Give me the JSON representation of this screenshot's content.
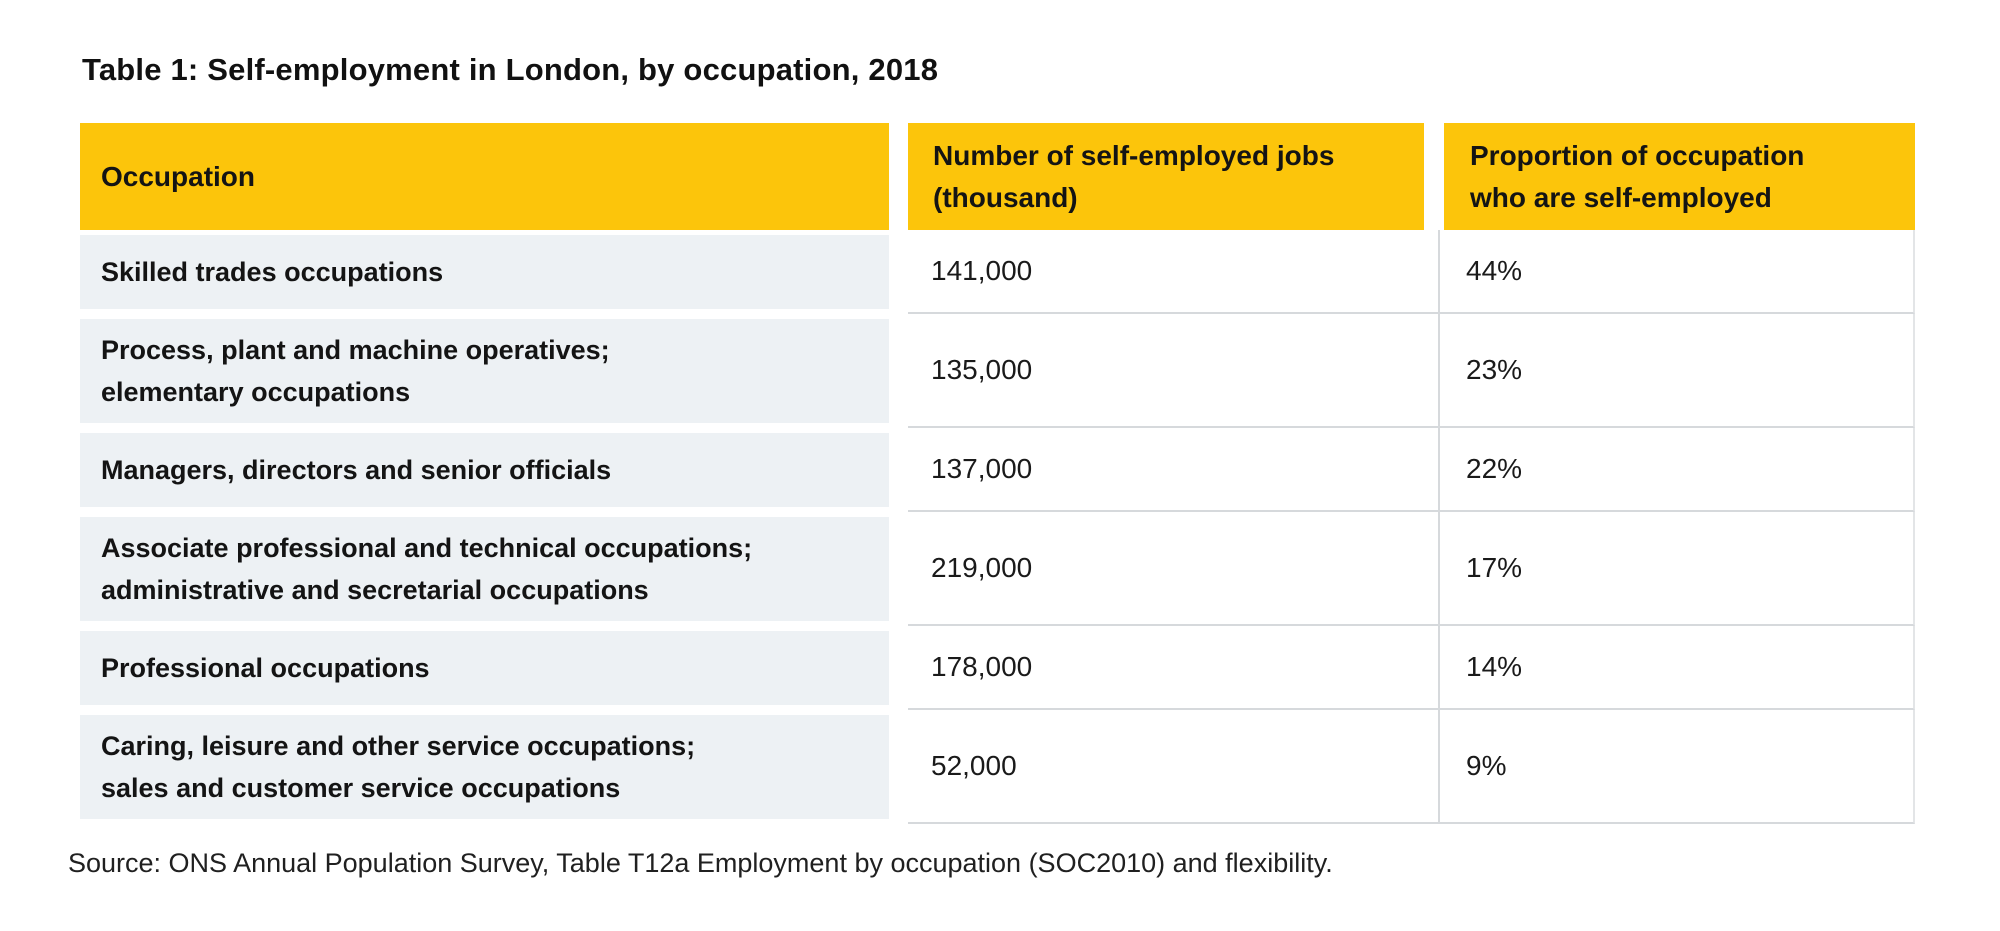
{
  "page": {
    "title": "Table 1: Self-employment in London, by occupation, 2018",
    "source_note": "Source: ONS Annual Population Survey, Table T12a Employment by occupation (SOC2010) and flexibility."
  },
  "table": {
    "columns": [
      {
        "label": "Occupation"
      },
      {
        "label": "Number of self-employed jobs\n(thousand)"
      },
      {
        "label": "Proportion of occupation\nwho are self-employed"
      }
    ],
    "rows": [
      {
        "occupation": "Skilled trades occupations",
        "jobs_thousand": "141,000",
        "proportion_self_employed": "44%"
      },
      {
        "occupation": "Process, plant and machine operatives;\nelementary occupations",
        "jobs_thousand": "135,000",
        "proportion_self_employed": "23%"
      },
      {
        "occupation": "Managers, directors and senior officials",
        "jobs_thousand": "137,000",
        "proportion_self_employed": "22%"
      },
      {
        "occupation": "Associate professional and technical occupations;\nadministrative and secretarial occupations",
        "jobs_thousand": "219,000",
        "proportion_self_employed": "17%"
      },
      {
        "occupation": "Professional occupations",
        "jobs_thousand": "178,000",
        "proportion_self_employed": "14%"
      },
      {
        "occupation": "Caring, leisure and other service occupations;\nsales and customer service occupations",
        "jobs_thousand": "52,000",
        "proportion_self_employed": "9%"
      }
    ]
  },
  "colors": {
    "header_bg": "#FCC50B",
    "row_bg": "#EDF1F4",
    "border": "#D6D9DC",
    "text": "#1A1A1A"
  },
  "chart_data": {
    "type": "table",
    "title": "Table 1: Self-employment in London, by occupation, 2018",
    "columns": [
      "Occupation",
      "Number of self-employed jobs (thousand)",
      "Proportion of occupation who are self-employed"
    ],
    "rows": [
      [
        "Skilled trades occupations",
        "141,000",
        "44%"
      ],
      [
        "Process, plant and machine operatives; elementary occupations",
        "135,000",
        "23%"
      ],
      [
        "Managers, directors and senior officials",
        "137,000",
        "22%"
      ],
      [
        "Associate professional and technical occupations; administrative and secretarial occupations",
        "219,000",
        "17%"
      ],
      [
        "Professional occupations",
        "178,000",
        "14%"
      ],
      [
        "Caring, leisure and other service occupations; sales and customer service occupations",
        "52,000",
        "9%"
      ]
    ],
    "source": "Source: ONS Annual Population Survey, Table T12a Employment by occupation (SOC2010) and flexibility."
  }
}
